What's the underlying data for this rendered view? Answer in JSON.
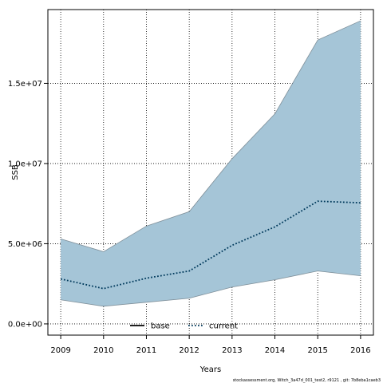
{
  "chart_data": {
    "type": "line",
    "xlabel": "Years",
    "ylabel": "SSB",
    "x": [
      2009,
      2010,
      2011,
      2012,
      2013,
      2014,
      2015,
      2016
    ],
    "xlim": [
      2008.7,
      2016.3
    ],
    "ylim": [
      -700000,
      19600000
    ],
    "yticks": [
      0,
      5000000,
      10000000,
      15000000
    ],
    "ytick_labels": [
      "0.0e+00",
      "5.0e+06",
      "1.0e+07",
      "1.5e+07"
    ],
    "grid": true,
    "band": {
      "lower": [
        1500000,
        1100000,
        1350000,
        1600000,
        2300000,
        2750000,
        3300000,
        3000000
      ],
      "upper": [
        5300000,
        4500000,
        6100000,
        7000000,
        10300000,
        13100000,
        17700000,
        18900000
      ],
      "color": "#a5c5d7"
    },
    "series": [
      {
        "name": "base",
        "values": [
          2800000,
          2200000,
          2850000,
          3300000,
          4900000,
          6050000,
          7650000,
          7550000
        ],
        "color": "#000000",
        "style": "solid",
        "visible": false
      },
      {
        "name": "current",
        "values": [
          2800000,
          2200000,
          2850000,
          3300000,
          4900000,
          6050000,
          7650000,
          7550000
        ],
        "color": "#003a5c",
        "style": "dotted",
        "visible": true
      }
    ],
    "legend": {
      "position": "bottom-center",
      "entries": [
        "base",
        "current"
      ]
    }
  },
  "footer_text": "stockassessment.org, Witch_3a47d_001_test2, r9121 , git: 7b8eba1caeb3"
}
